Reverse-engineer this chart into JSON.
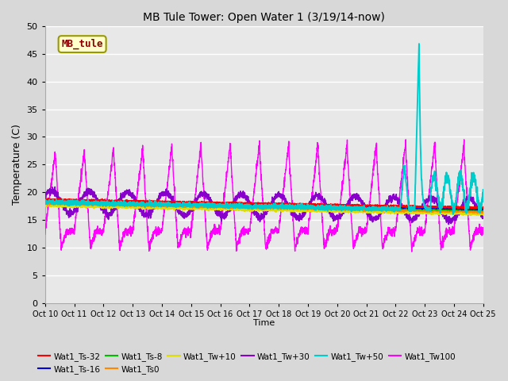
{
  "title": "MB Tule Tower: Open Water 1 (3/19/14-now)",
  "xlabel": "Time",
  "ylabel": "Temperature (C)",
  "xlim": [
    0,
    15
  ],
  "ylim": [
    0,
    50
  ],
  "yticks": [
    0,
    5,
    10,
    15,
    20,
    25,
    30,
    35,
    40,
    45,
    50
  ],
  "xtick_labels": [
    "Oct 10",
    "Oct 11",
    "Oct 12",
    "Oct 13",
    "Oct 14",
    "Oct 15",
    "Oct 16",
    "Oct 17",
    "Oct 18",
    "Oct 19",
    "Oct 20",
    "Oct 21",
    "Oct 22",
    "Oct 23",
    "Oct 24",
    "Oct 25"
  ],
  "background_color": "#d8d8d8",
  "plot_bg_color": "#e8e8e8",
  "grid_color": "#ffffff",
  "legend_box_color": "#ffffcc",
  "legend_box_edge": "#999900",
  "legend_text_color": "#880000",
  "series": {
    "Wat1_Ts-32": {
      "color": "#ff0000",
      "lw": 1.2,
      "zorder": 5
    },
    "Wat1_Ts-16": {
      "color": "#0000dd",
      "lw": 1.2,
      "zorder": 5
    },
    "Wat1_Ts-8": {
      "color": "#00bb00",
      "lw": 1.2,
      "zorder": 5
    },
    "Wat1_Ts0": {
      "color": "#ff8800",
      "lw": 1.2,
      "zorder": 5
    },
    "Wat1_Tw+10": {
      "color": "#dddd00",
      "lw": 1.2,
      "zorder": 5
    },
    "Wat1_Tw+30": {
      "color": "#8800cc",
      "lw": 1.2,
      "zorder": 5
    },
    "Wat1_Tw+50": {
      "color": "#00cccc",
      "lw": 1.4,
      "zorder": 6
    },
    "Wat1_Tw100": {
      "color": "#ff00ff",
      "lw": 1.0,
      "zorder": 4
    }
  }
}
